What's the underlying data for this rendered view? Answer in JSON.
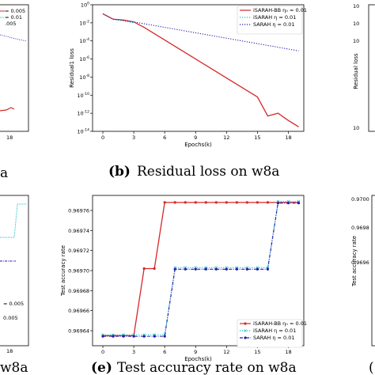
{
  "captions": {
    "left_top_fragment": "a",
    "b_label": "(b)",
    "b_text": "Residual loss on w8a",
    "left_bottom_fragment": "w8a",
    "e_label": "(e)",
    "e_text": "Test accuracy rate on w8a",
    "right_bottom_fragment": "("
  },
  "left_fragments": {
    "top_legend": [
      "= 0.005",
      "= 0.01",
      ".005"
    ],
    "top_xtick": "18",
    "bottom_legend": [
      "= 0.005",
      "0.005"
    ],
    "bottom_xtick": "18"
  },
  "right_fragments": {
    "top_yticks": [
      "10",
      "10",
      "10",
      "10",
      "10",
      "10",
      "10",
      "10"
    ],
    "top_ylabel": "Residual loss",
    "bottom_yticks": [
      "0.9700",
      "0.9698",
      "0.9696"
    ],
    "bottom_ylabel": "Test accuracy rate"
  },
  "chart_data": [
    {
      "type": "line",
      "xlabel": "Epochs(k)",
      "ylabel": "Residual1 loss",
      "yscale": "log",
      "xlim": [
        -1,
        19.5
      ],
      "ylim_log10": [
        -14,
        0
      ],
      "xticks": [
        0,
        3,
        6,
        9,
        12,
        15,
        18
      ],
      "yticks": [
        {
          "exp": 0,
          "label": "10",
          "sup": "0"
        },
        {
          "exp": -2,
          "label": "10",
          "sup": "-2"
        },
        {
          "exp": -4,
          "label": "10",
          "sup": "-4"
        },
        {
          "exp": -6,
          "label": "10",
          "sup": "-6"
        },
        {
          "exp": -8,
          "label": "10",
          "sup": "-8"
        },
        {
          "exp": -10,
          "label": "10",
          "sup": "-10"
        },
        {
          "exp": -12,
          "label": "10",
          "sup": "-12"
        },
        {
          "exp": -14,
          "label": "10",
          "sup": "-14"
        }
      ],
      "legend_position": "top-right",
      "series": [
        {
          "name": "iSARAH-BB η₀ = 0.01",
          "color": "#d62728",
          "style": "solid",
          "marker": "none",
          "x": [
            0,
            1,
            2,
            3,
            4,
            5,
            6,
            7,
            8,
            9,
            10,
            11,
            12,
            13,
            14,
            15,
            16,
            17,
            18,
            19
          ],
          "y_log10": [
            -1.0,
            -1.6,
            -1.7,
            -1.9,
            -2.5,
            -3.2,
            -3.9,
            -4.6,
            -5.3,
            -6.0,
            -6.7,
            -7.4,
            -8.1,
            -8.8,
            -9.5,
            -10.2,
            -12.3,
            -12.0,
            -12.8,
            -13.5
          ]
        },
        {
          "name": "iSARAH η = 0.01",
          "color": "#17becf",
          "style": "dotted",
          "marker": "none",
          "x": [
            0,
            1,
            2,
            3
          ],
          "y_log10": [
            -1.0,
            -1.6,
            -1.8,
            -2.0
          ]
        },
        {
          "name": "SARAH η = 0.01",
          "color": "#1f1fa8",
          "style": "dotted",
          "marker": "none",
          "x": [
            0,
            1,
            2,
            3,
            4,
            5,
            6,
            7,
            8,
            9,
            10,
            11,
            12,
            13,
            14,
            15,
            16,
            17,
            18,
            19
          ],
          "y_log10": [
            -1.0,
            -1.6,
            -1.7,
            -1.9,
            -2.1,
            -2.3,
            -2.5,
            -2.7,
            -2.9,
            -3.1,
            -3.3,
            -3.5,
            -3.7,
            -3.9,
            -4.1,
            -4.3,
            -4.5,
            -4.7,
            -4.9,
            -5.1
          ]
        }
      ]
    },
    {
      "type": "line",
      "xlabel": "Epochs(k)",
      "ylabel": "Test accuracy rate",
      "xlim": [
        -1,
        19.5
      ],
      "ylim": [
        0.969625,
        0.969775
      ],
      "xticks": [
        0,
        3,
        6,
        9,
        12,
        15,
        18
      ],
      "yticks": [
        0.96964,
        0.96966,
        0.96968,
        0.9697,
        0.96972,
        0.96974,
        0.96976
      ],
      "ytick_labels": [
        "0.96964",
        "0.96966",
        "0.96968",
        "0.96970",
        "0.96972",
        "0.96974",
        "0.96976"
      ],
      "legend_position": "bottom-right",
      "series": [
        {
          "name": "iSARAH-BB η₀ = 0.01",
          "color": "#d62728",
          "style": "solid",
          "marker": "circle",
          "x": [
            0,
            1,
            2,
            3,
            4,
            5,
            6,
            7,
            8,
            9,
            10,
            11,
            12,
            13,
            14,
            15,
            16,
            17,
            18,
            19
          ],
          "y": [
            0.969635,
            0.969635,
            0.969635,
            0.969635,
            0.969702,
            0.969702,
            0.969768,
            0.969768,
            0.969768,
            0.969768,
            0.969768,
            0.969768,
            0.969768,
            0.969768,
            0.969768,
            0.969768,
            0.969768,
            0.969768,
            0.969768,
            0.969768
          ]
        },
        {
          "name": "iSARAH η = 0.01",
          "color": "#17becf",
          "style": "dotted",
          "marker": "x",
          "x": [
            0,
            1,
            2,
            3,
            4,
            5,
            6,
            7,
            8,
            9,
            10,
            11,
            12,
            13,
            14,
            15,
            16,
            17,
            18,
            19
          ],
          "y": [
            0.969635,
            0.969635,
            0.969635,
            0.969635,
            0.969635,
            0.969635,
            0.969635,
            0.969702,
            0.969702,
            0.969702,
            0.969702,
            0.969702,
            0.969702,
            0.969702,
            0.969702,
            0.969702,
            0.969702,
            0.969768,
            0.969768,
            0.969768
          ]
        },
        {
          "name": "SARAH η = 0.01",
          "color": "#1f1fa8",
          "style": "dashdot",
          "marker": "circle",
          "x": [
            0,
            1,
            2,
            3,
            4,
            5,
            6,
            7,
            8,
            9,
            10,
            11,
            12,
            13,
            14,
            15,
            16,
            17,
            18,
            19
          ],
          "y": [
            0.969635,
            0.969635,
            0.969635,
            0.969635,
            0.969635,
            0.969635,
            0.969635,
            0.969702,
            0.969702,
            0.969702,
            0.969702,
            0.969702,
            0.969702,
            0.969702,
            0.969702,
            0.969702,
            0.969702,
            0.969768,
            0.969768,
            0.969768
          ]
        }
      ]
    }
  ]
}
